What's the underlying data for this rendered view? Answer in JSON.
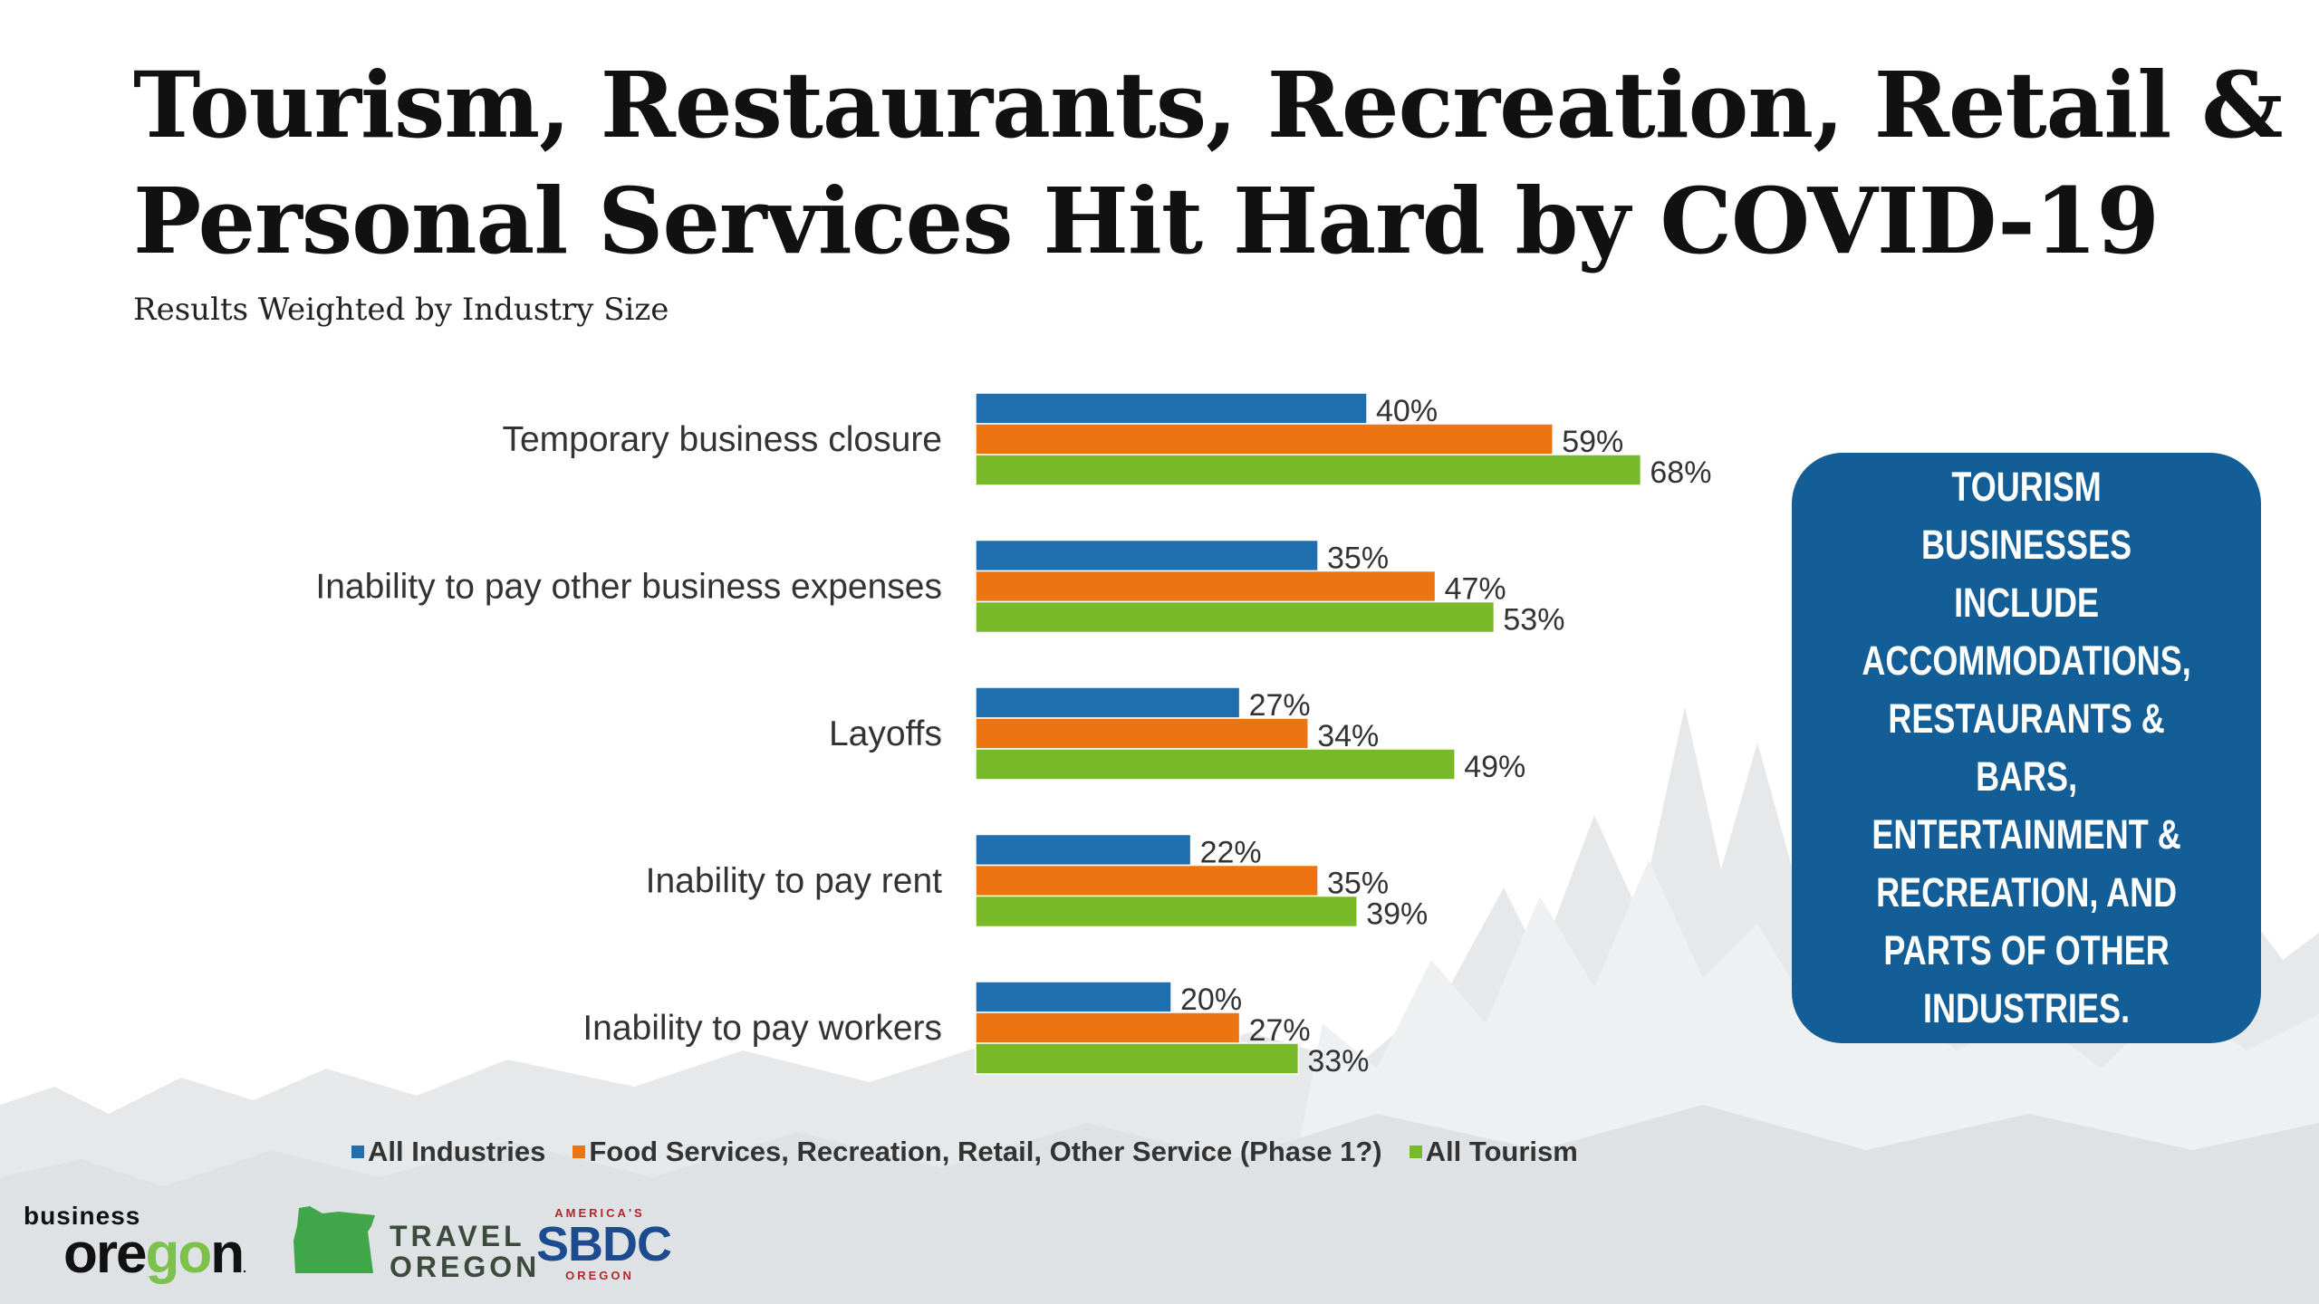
{
  "title_lines": [
    "Tourism, Restaurants, Recreation, Retail &",
    "Personal Services Hit Hard by COVID-19"
  ],
  "subtitle": "Results Weighted by Industry Size",
  "callout": "Tourism businesses include accommodations, restaurants & bars, entertainment & recreation, and parts of other industries.",
  "colors": {
    "all_industries": "#1f6fae",
    "food_services": "#ec7512",
    "all_tourism": "#78b929",
    "callout_bg": "#135e96"
  },
  "chart_data": {
    "type": "bar",
    "orientation": "horizontal",
    "categories": [
      "Temporary business closure",
      "Inability to pay other business expenses",
      "Layoffs",
      "Inability to pay rent",
      "Inability to pay workers"
    ],
    "series": [
      {
        "name": "All Industries",
        "values": [
          40,
          35,
          27,
          22,
          20
        ],
        "labels": [
          "40%",
          "35%",
          "27%",
          "22%",
          "20%"
        ]
      },
      {
        "name": "Food Services, Recreation, Retail, Other Service (Phase 1?)",
        "values": [
          59,
          47,
          34,
          35,
          27
        ],
        "labels": [
          "59%",
          "47%",
          "34%",
          "35%",
          "27%"
        ]
      },
      {
        "name": "All Tourism",
        "values": [
          68,
          53,
          49,
          39,
          33
        ],
        "labels": [
          "68%",
          "53%",
          "49%",
          "39%",
          "33%"
        ]
      }
    ],
    "xlim": [
      0,
      100
    ],
    "grid": false,
    "legend_position": "bottom"
  },
  "logos": {
    "business_oregon_small": "business",
    "business_oregon_big_1": "ore",
    "business_oregon_big_2": "go",
    "business_oregon_big_3": "n",
    "travel_oregon_1": "TRAVEL",
    "travel_oregon_2": "OREGON",
    "sbdc_top": "AMERICA'S",
    "sbdc_mid": "SBDC",
    "sbdc_bot": "OREGON"
  }
}
